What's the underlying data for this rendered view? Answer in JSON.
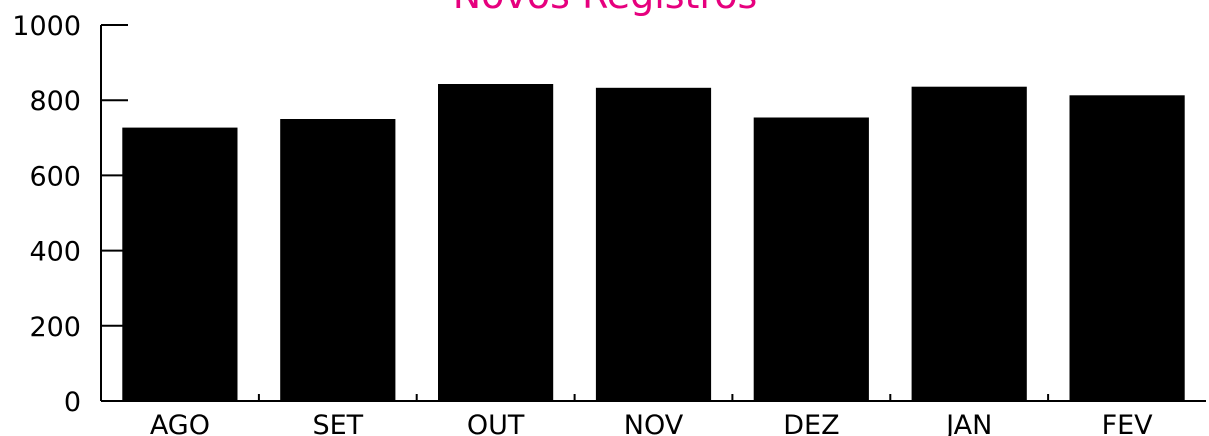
{
  "chart_data": {
    "type": "bar",
    "title": "Novos Registros",
    "categories": [
      "AGO",
      "SET",
      "OUT",
      "NOV",
      "DEZ",
      "JAN",
      "FEV"
    ],
    "values": [
      727,
      750,
      843,
      833,
      754,
      836,
      813
    ],
    "ylim": [
      0,
      1000
    ],
    "yticks": [
      0,
      200,
      400,
      600,
      800,
      1000
    ],
    "xlabel": "",
    "ylabel": "",
    "grid": false,
    "legend": "none",
    "colors": {
      "bar": "#000000",
      "title": "#e6007e"
    }
  }
}
